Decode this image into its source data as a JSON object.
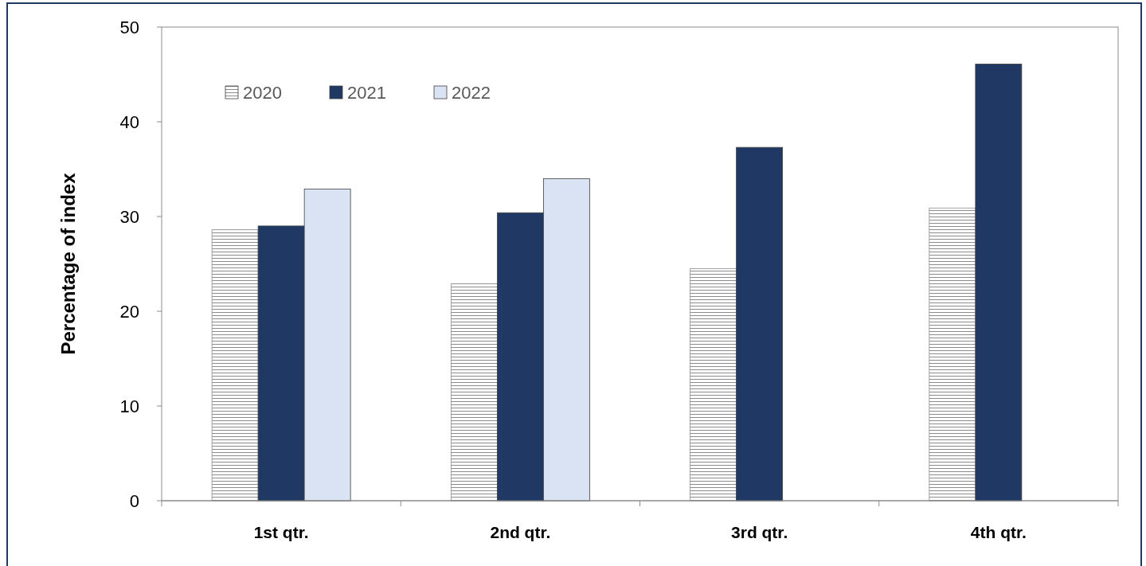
{
  "chart_data": {
    "type": "bar",
    "ylabel": "Percentage  of index",
    "categories": [
      "1st qtr.",
      "2nd qtr.",
      "3rd qtr.",
      "4th qtr."
    ],
    "series": [
      {
        "name": "2020",
        "color": "#8c8c8c",
        "values": [
          28.6,
          22.9,
          24.5,
          30.9
        ]
      },
      {
        "name": "2021",
        "color": "#203864",
        "values": [
          29.0,
          30.4,
          37.3,
          46.1
        ]
      },
      {
        "name": "2022",
        "color": "#dae3f3",
        "values": [
          32.9,
          34.0,
          null,
          null
        ]
      }
    ],
    "ylim": [
      0,
      50
    ],
    "yticks": [
      0,
      10,
      20,
      30,
      40,
      50
    ],
    "grid": false,
    "legend": "top left"
  }
}
